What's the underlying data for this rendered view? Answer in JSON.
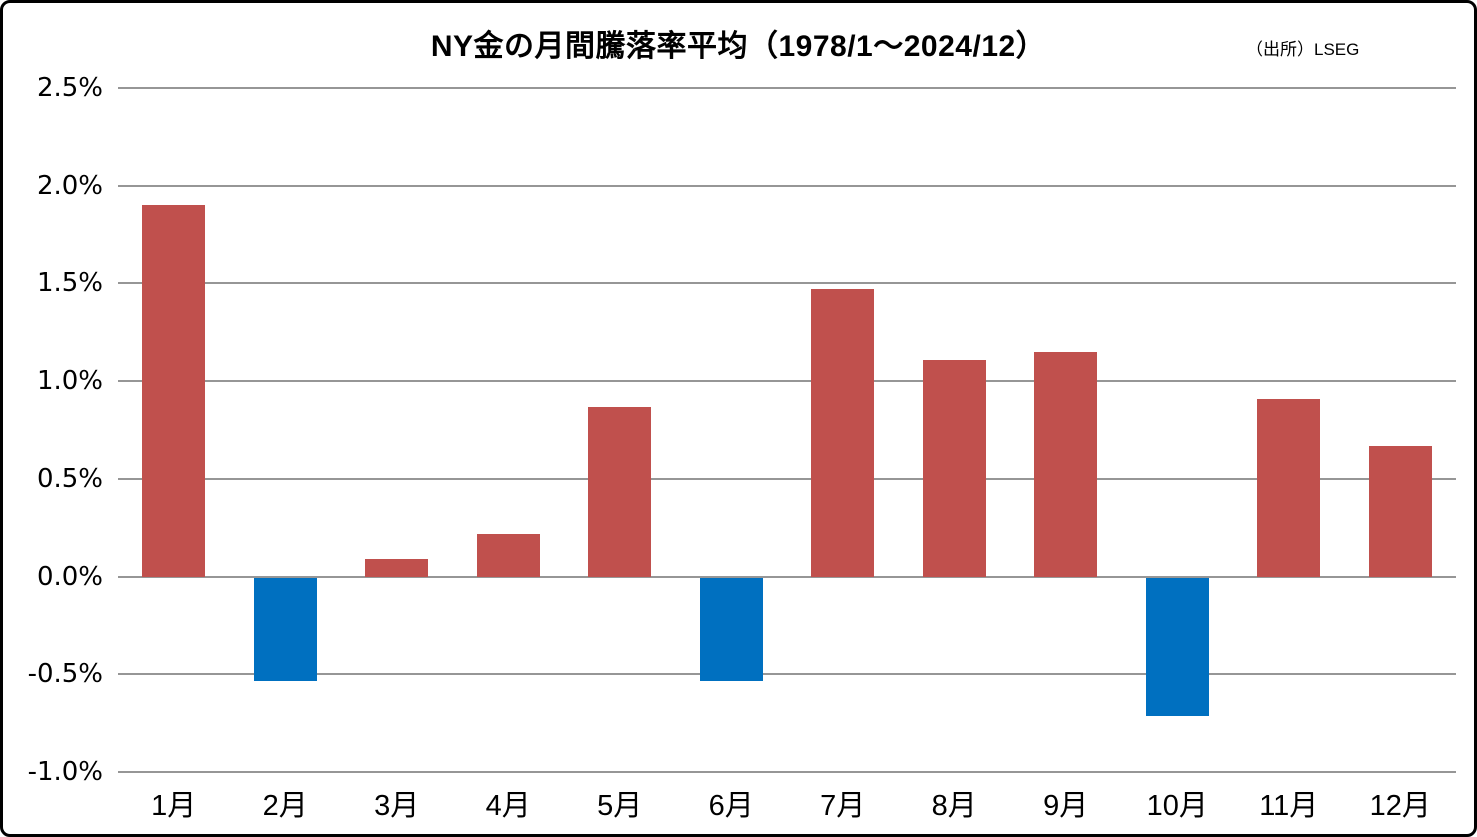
{
  "header": {
    "title": "NY金の月間騰落率平均（1978/1～2024/12）",
    "source": "（出所）LSEG"
  },
  "colors": {
    "positive_bar": "#C0504D",
    "negative_bar": "#0070C0",
    "gridline": "#969696",
    "zero_line": "#969696",
    "frame_border": "#000000",
    "background": "#FFFFFF",
    "text": "#000000"
  },
  "chart_data": {
    "type": "bar",
    "title": "NY金の月間騰落率平均（1978/1～2024/12）",
    "source": "（出所）LSEG",
    "categories": [
      "1月",
      "2月",
      "3月",
      "4月",
      "5月",
      "6月",
      "7月",
      "8月",
      "9月",
      "10月",
      "11月",
      "12月"
    ],
    "values": [
      1.9,
      -0.53,
      0.09,
      0.22,
      0.87,
      -0.53,
      1.47,
      1.11,
      1.15,
      -0.71,
      0.91,
      0.67
    ],
    "unit": "%",
    "xlabel": "",
    "ylabel": "",
    "ylim": [
      -1.0,
      2.5
    ],
    "ytick_step": 0.5,
    "yticks": [
      2.5,
      2.0,
      1.5,
      1.0,
      0.5,
      0.0,
      -0.5,
      -1.0
    ],
    "ytick_labels": [
      "2.5%",
      "2.0%",
      "1.5%",
      "1.0%",
      "0.5%",
      "0.0%",
      "-0.5%",
      "-1.0%"
    ],
    "grid": true,
    "legend": false
  }
}
